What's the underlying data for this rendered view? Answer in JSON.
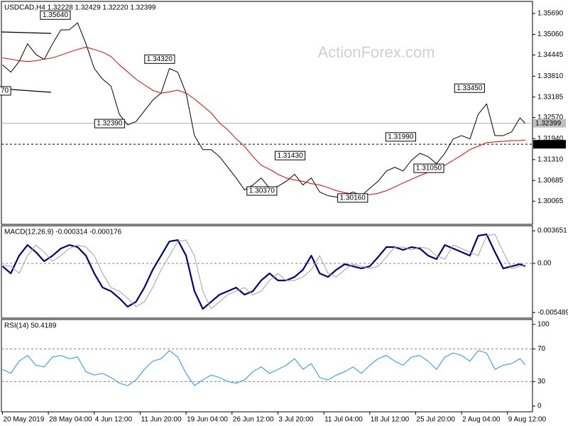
{
  "chart_data": [
    {
      "type": "line",
      "title": "USDCAD,H4  1.32228 1.32429 1.32220 1.32399",
      "watermark": "ActionForex.com",
      "x": [
        0,
        8,
        16,
        24,
        32,
        40,
        48,
        56,
        64,
        72,
        80,
        88,
        96,
        104,
        112,
        120,
        128,
        136,
        144,
        152,
        160,
        168,
        176,
        184,
        192,
        200,
        208,
        216,
        224,
        232,
        240,
        248,
        256,
        264,
        272,
        280,
        288,
        296,
        304,
        312,
        320,
        328,
        336,
        344,
        352,
        360,
        368,
        376,
        384,
        392,
        400,
        408,
        416,
        424,
        432,
        440,
        448,
        456,
        464,
        472,
        480,
        488,
        496,
        501
      ],
      "xlim": [
        -1,
        508
      ],
      "series": [
        {
          "color": "#000000",
          "width": 1,
          "values": [
            1.3415,
            1.3393,
            1.3425,
            1.3478,
            1.3446,
            1.3431,
            1.3478,
            1.352,
            1.352,
            1.3541,
            1.3478,
            1.3404,
            1.3372,
            1.3351,
            1.3267,
            1.3235,
            1.3245,
            1.3277,
            1.3309,
            1.333,
            1.3404,
            1.3393,
            1.333,
            1.3203,
            1.3161,
            1.3161,
            1.314,
            1.3108,
            1.3076,
            1.304,
            1.3055,
            1.3076,
            1.3045,
            1.3051,
            1.3066,
            1.3087,
            1.3055,
            1.3076,
            1.3034,
            1.3023,
            1.3019,
            1.3023,
            1.3034,
            1.3023,
            1.3045,
            1.3066,
            1.3097,
            1.3108,
            1.3097,
            1.3129,
            1.315,
            1.314,
            1.3119,
            1.315,
            1.3193,
            1.3203,
            1.3193,
            1.3267,
            1.3298,
            1.3203,
            1.3203,
            1.3214,
            1.3256,
            1.32399
          ]
        },
        {
          "color": "#e00000",
          "width": 1,
          "values": [
            1.3436,
            1.3432,
            1.3427,
            1.3425,
            1.3427,
            1.3432,
            1.3436,
            1.3444,
            1.3453,
            1.3461,
            1.3468,
            1.3461,
            1.3453,
            1.344,
            1.3415,
            1.3394,
            1.3372,
            1.3355,
            1.3339,
            1.333,
            1.3334,
            1.3339,
            1.333,
            1.3313,
            1.3292,
            1.3271,
            1.3241,
            1.322,
            1.3193,
            1.3171,
            1.314,
            1.3114,
            1.3102,
            1.3087,
            1.3076,
            1.307,
            1.3066,
            1.3059,
            1.3055,
            1.3047,
            1.3038,
            1.3032,
            1.3028,
            1.3026,
            1.3026,
            1.303,
            1.3038,
            1.3049,
            1.3061,
            1.3072,
            1.3083,
            1.3093,
            1.3104,
            1.3114,
            1.3129,
            1.3144,
            1.3161,
            1.3171,
            1.3182,
            1.3184,
            1.3186,
            1.3188,
            1.3188,
            1.319
          ]
        }
      ],
      "ylim": [
        1.2937,
        1.3605
      ],
      "yticks": [
        {
          "value": 1.3569,
          "label": "1.35690"
        },
        {
          "value": 1.3506,
          "label": "1.35060"
        },
        1.34445,
        {
          "value": 1.3381,
          "label": "1.33810"
        },
        1.33185,
        {
          "value": 1.3257,
          "label": "1.32570"
        },
        {
          "value": 1.3194,
          "label": "1.31940"
        },
        {
          "value": 1.3131,
          "label": "1.31310"
        },
        1.30685,
        1.30065
      ],
      "annotations": [
        {
          "x": 65,
          "value": 1.3564,
          "label": "1.35640"
        },
        {
          "x": 165,
          "value": 1.3432,
          "label": "1.34320"
        },
        {
          "x": 117,
          "value": 1.3239,
          "label": "1.32390"
        },
        {
          "x": 290,
          "value": 1.3143,
          "label": "1.31430"
        },
        {
          "x": 263,
          "value": 1.3037,
          "label": "1.30370"
        },
        {
          "x": 350,
          "value": 1.3016,
          "label": "1.30160"
        },
        {
          "x": 396,
          "value": 1.3199,
          "label": "1.31990"
        },
        {
          "x": 423,
          "value": 1.3105,
          "label": "1.31050"
        },
        {
          "x": 462,
          "value": 1.3345,
          "label": "1.33450"
        },
        {
          "x": 2,
          "value": 1.3337,
          "label": "70"
        }
      ],
      "price_labels": [
        {
          "value": 1.32399,
          "label": "1.32399",
          "color": "#c0c0c0",
          "text_color": "#000000",
          "line": "solid"
        },
        {
          "value": 1.3177,
          "label": "1.31770",
          "color": "#000000",
          "text_color": "#ffffff",
          "line": "dashed"
        }
      ]
    },
    {
      "type": "line",
      "title": "MACD(12,26,9) -0.000314 -0.000176",
      "x": [
        0,
        8,
        16,
        24,
        32,
        40,
        48,
        56,
        64,
        72,
        80,
        88,
        96,
        104,
        112,
        120,
        128,
        136,
        144,
        152,
        160,
        168,
        176,
        184,
        192,
        200,
        208,
        216,
        224,
        232,
        240,
        248,
        256,
        264,
        272,
        280,
        288,
        296,
        304,
        312,
        320,
        328,
        336,
        344,
        352,
        360,
        368,
        376,
        384,
        392,
        400,
        408,
        416,
        424,
        432,
        440,
        448,
        456,
        464,
        472,
        480,
        488,
        496,
        501
      ],
      "xlim": [
        -1,
        508
      ],
      "series": [
        {
          "color": "#000080",
          "width": 2.2,
          "values": [
            -0.00032,
            -0.00111,
            0.00087,
            0.00206,
            0.00127,
            0.00024,
            0.00087,
            0.00167,
            0.00206,
            0.00183,
            0.00087,
            -0.00111,
            -0.0027,
            -0.0031,
            -0.00389,
            -0.00484,
            -0.00429,
            -0.0027,
            -0.00071,
            0.00087,
            0.00246,
            0.00262,
            0.00087,
            -0.0031,
            -0.00508,
            -0.00429,
            -0.00349,
            -0.0031,
            -0.0027,
            -0.00349,
            -0.0031,
            -0.0019,
            -0.00111,
            -0.0019,
            -0.0019,
            -0.00151,
            -0.00071,
            0.00087,
            -0.00111,
            -0.00151,
            -0.00071,
            -8e-05,
            -0.00032,
            -0.00056,
            -0.00032,
            0.00071,
            0.00183,
            0.00183,
            0.00151,
            0.00183,
            0.00167,
            0.00087,
            0.00048,
            0.00206,
            0.00167,
            0.00127,
            0.00087,
            0.0031,
            0.00325,
            0.00127,
            -0.00056,
            -0.00032,
            -8e-05,
            -0.000314
          ]
        },
        {
          "color": "#a0a0a0",
          "width": 1,
          "values": [
            -0.0002,
            -0.00032,
            -0.00111,
            0.00087,
            0.00206,
            0.00127,
            0.00024,
            0.00087,
            0.00167,
            0.00206,
            0.00183,
            0.00087,
            -0.00111,
            -0.0027,
            -0.0031,
            -0.00389,
            -0.00484,
            -0.00429,
            -0.0027,
            -0.00071,
            0.00087,
            0.00246,
            0.00262,
            0.00087,
            -0.0031,
            -0.00508,
            -0.00429,
            -0.00349,
            -0.0031,
            -0.0027,
            -0.00349,
            -0.0031,
            -0.0019,
            -0.00111,
            -0.0019,
            -0.0019,
            -0.00151,
            -0.00071,
            0.00087,
            -0.00111,
            -0.00151,
            -0.00071,
            -8e-05,
            -0.00032,
            -0.00056,
            -0.00032,
            0.00071,
            0.00183,
            0.00183,
            0.00151,
            0.00183,
            0.00167,
            0.00087,
            0.00048,
            0.00206,
            0.00167,
            0.00127,
            0.00087,
            0.0031,
            0.00325,
            0.00127,
            -0.00056,
            -0.00032,
            -0.000176
          ]
        }
      ],
      "ylim": [
        -0.00611,
        0.00421
      ],
      "yticks": [
        0.003651,
        {
          "value": 0,
          "label": "0.00"
        },
        -0.005489
      ],
      "levels": [
        0
      ]
    },
    {
      "type": "line",
      "title": "RSI(14) 50.4189",
      "x": [
        0,
        8,
        16,
        24,
        32,
        40,
        48,
        56,
        64,
        72,
        80,
        88,
        96,
        104,
        112,
        120,
        128,
        136,
        144,
        152,
        160,
        168,
        176,
        184,
        192,
        200,
        208,
        216,
        224,
        232,
        240,
        248,
        256,
        264,
        272,
        280,
        288,
        296,
        304,
        312,
        320,
        328,
        336,
        344,
        352,
        360,
        368,
        376,
        384,
        392,
        400,
        408,
        416,
        424,
        432,
        440,
        448,
        456,
        464,
        472,
        480,
        488,
        496,
        501
      ],
      "xlim": [
        -1,
        508
      ],
      "series": [
        {
          "color": "#1e90ff",
          "width": 1,
          "values": [
            45,
            40,
            55,
            62,
            50,
            48,
            60,
            62,
            58,
            60,
            42,
            38,
            40,
            35,
            28,
            25,
            32,
            45,
            55,
            58,
            68,
            60,
            40,
            25,
            32,
            38,
            35,
            30,
            28,
            32,
            42,
            48,
            40,
            45,
            50,
            58,
            45,
            52,
            35,
            32,
            38,
            42,
            48,
            40,
            50,
            58,
            62,
            55,
            50,
            60,
            62,
            55,
            45,
            60,
            65,
            62,
            55,
            68,
            65,
            45,
            50,
            52,
            58,
            50.4189
          ]
        }
      ],
      "ylim": [
        -7,
        106
      ],
      "yticks": [
        100,
        70,
        30,
        0
      ],
      "levels": [
        70,
        30
      ],
      "xticks": [
        {
          "value": 0,
          "label": "20 May 2019"
        },
        {
          "value": 44,
          "label": "28 May 04:00"
        },
        {
          "value": 88,
          "label": "4 Jun 12:00"
        },
        {
          "value": 132,
          "label": "11 Jun 20:00"
        },
        {
          "value": 176,
          "label": "19 Jun 04:00"
        },
        {
          "value": 220,
          "label": "26 Jun 12:00"
        },
        {
          "value": 264,
          "label": "3 Jul 20:00"
        },
        {
          "value": 308,
          "label": "11 Jul 04:00"
        },
        {
          "value": 352,
          "label": "18 Jul 12:00"
        },
        {
          "value": 396,
          "label": "25 Jul 20:00"
        },
        {
          "value": 440,
          "label": "2 Aug 04:00"
        },
        {
          "value": 484,
          "label": "9 Aug 12:00"
        }
      ]
    }
  ]
}
